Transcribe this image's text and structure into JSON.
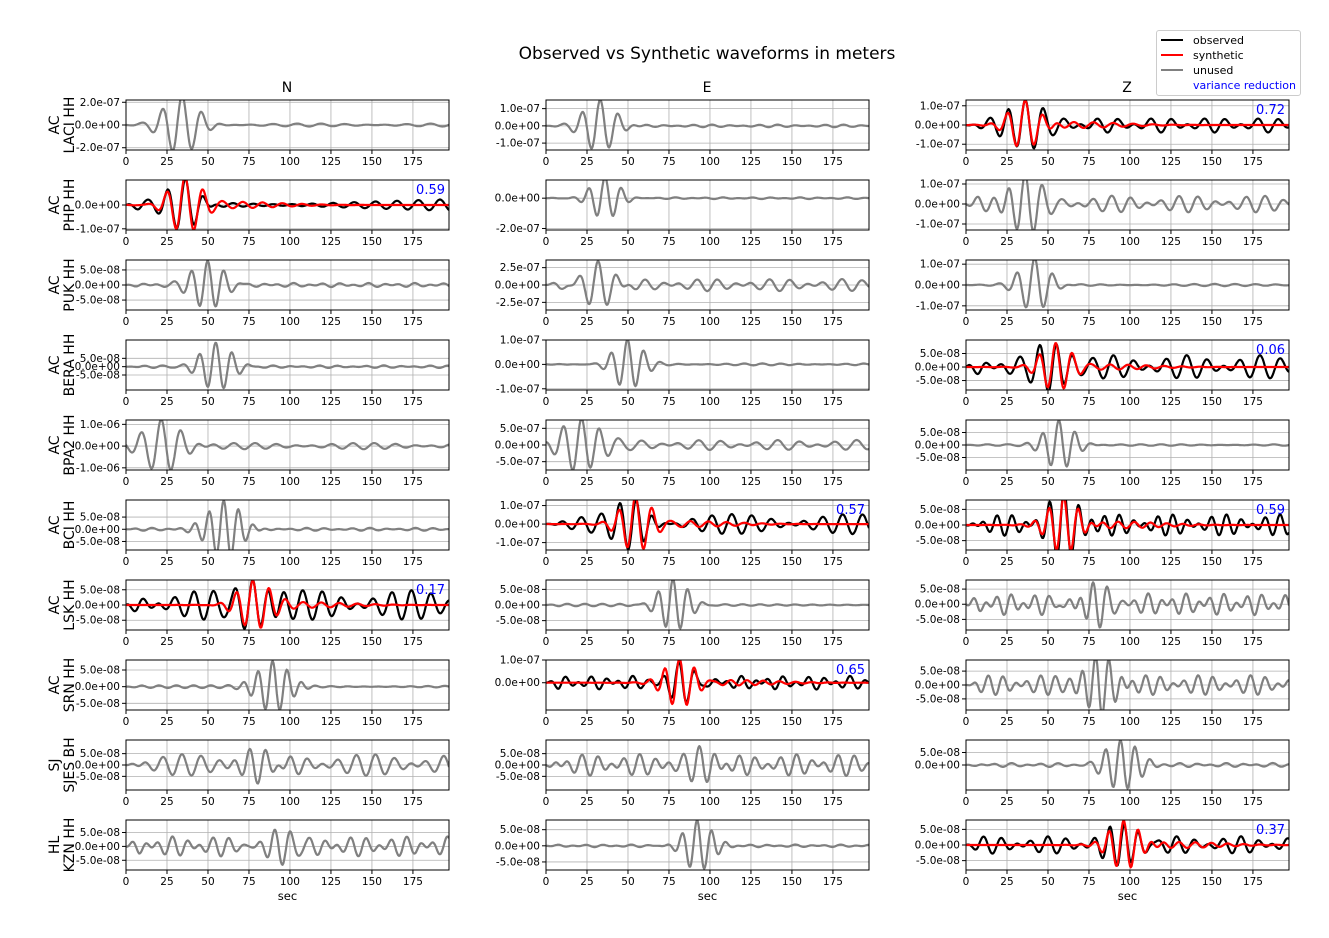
{
  "title": "Observed vs Synthetic waveforms in meters",
  "column_titles": [
    "N",
    "E",
    "Z"
  ],
  "legend": {
    "observed": "observed",
    "synthetic": "synthetic",
    "unused": "unused",
    "variance_reduction": "variance reduction"
  },
  "colors": {
    "observed": "#000000",
    "synthetic": "#ff0000",
    "unused": "#808080",
    "variance_reduction": "#0000ff"
  },
  "chart_data": {
    "type": "line",
    "title": "Observed vs Synthetic waveforms in meters",
    "xlabel": "sec",
    "xlim": [
      0,
      197
    ],
    "xticks": [
      0,
      25,
      50,
      75,
      100,
      125,
      150,
      175
    ],
    "grid": true,
    "legend_position": "top-right",
    "stations": [
      {
        "network": "AC",
        "code": "LACI HH",
        "N": {
          "status": "unused",
          "ylim": [
            -2.2e-07,
            2.2e-07
          ],
          "yticks": [
            2e-07,
            0,
            -2e-07
          ],
          "yticklabels": [
            "2.0e-07",
            "0.0e+00",
            "-2.0e-07"
          ],
          "t0": 34,
          "amp": 2.6e-07,
          "period": 12,
          "dur": 14,
          "noise": 0.05
        },
        "E": {
          "status": "unused",
          "ylim": [
            -1.4e-07,
            1.5e-07
          ],
          "yticks": [
            1e-07,
            0,
            -1e-07
          ],
          "yticklabels": [
            "1.0e-07",
            "0.0e+00",
            "-1.0e-07"
          ],
          "t0": 33,
          "amp": 1.5e-07,
          "period": 11,
          "dur": 13,
          "noise": 0.05
        },
        "Z": {
          "status": "used",
          "ylim": [
            -1.3e-07,
            1.3e-07
          ],
          "yticks": [
            1e-07,
            0,
            -1e-07
          ],
          "yticklabels": [
            "1.0e-07",
            "0.0e+00",
            "-1.0e-07"
          ],
          "t0": 36,
          "amp": 1.3e-07,
          "period": 11,
          "dur": 12,
          "noise": 0.3,
          "variance_reduction": "0.72"
        }
      },
      {
        "network": "AC",
        "code": "PHP HH",
        "N": {
          "status": "used",
          "ylim": [
            -1.05e-07,
            1.05e-07
          ],
          "yticks": [
            0,
            -1e-07
          ],
          "yticklabels": [
            "0.0e+00",
            "-1.0e-07"
          ],
          "t0": 36,
          "amp": 1.1e-07,
          "period": 11,
          "dur": 12,
          "noise": 0.3,
          "variance_reduction": "0.59"
        },
        "E": {
          "status": "unused",
          "ylim": [
            -2.1e-07,
            1.2e-07
          ],
          "yticks": [
            0,
            -2e-07
          ],
          "yticklabels": [
            "0.0e+00",
            "-2.0e-07"
          ],
          "t0": 36,
          "amp": 1.4e-07,
          "period": 10,
          "dur": 12,
          "noise": 0.04
        },
        "Z": {
          "status": "unused",
          "ylim": [
            -1.3e-07,
            1.2e-07
          ],
          "yticks": [
            1e-07,
            0,
            -1e-07
          ],
          "yticklabels": [
            "1.0e-07",
            "0.0e+00",
            "-1.0e-07"
          ],
          "t0": 36,
          "amp": 1.2e-07,
          "period": 10,
          "dur": 14,
          "noise": 0.35
        }
      },
      {
        "network": "AC",
        "code": "PUK HH",
        "N": {
          "status": "unused",
          "ylim": [
            -8.3e-08,
            8.3e-08
          ],
          "yticks": [
            5e-08,
            0,
            -5e-08
          ],
          "yticklabels": [
            "5.0e-08",
            "0.0e+00",
            "-5.0e-08"
          ],
          "t0": 50,
          "amp": 8.5e-08,
          "period": 10,
          "dur": 13,
          "noise": 0.08
        },
        "E": {
          "status": "unused",
          "ylim": [
            -3.6e-07,
            3.6e-07
          ],
          "yticks": [
            2.5e-07,
            0,
            -2.5e-07
          ],
          "yticklabels": [
            "2.5e-07",
            "0.0e+00",
            "-2.5e-07"
          ],
          "t0": 32,
          "amp": 3.5e-07,
          "period": 11,
          "dur": 14,
          "noise": 0.25
        },
        "Z": {
          "status": "unused",
          "ylim": [
            -1.2e-07,
            1.2e-07
          ],
          "yticks": [
            1e-07,
            0,
            -1e-07
          ],
          "yticklabels": [
            "1.0e-07",
            "0.0e+00",
            "-1.0e-07"
          ],
          "t0": 42,
          "amp": 1.3e-07,
          "period": 11,
          "dur": 12,
          "noise": 0.04
        }
      },
      {
        "network": "AC",
        "code": "BERA HH",
        "N": {
          "status": "unused",
          "ylim": [
            -1.4e-07,
            1.6e-07
          ],
          "yticks": [
            5e-08,
            0,
            -5e-08
          ],
          "yticklabels": [
            "5.0e-08",
            "0.0e+00",
            "-5.0e-08"
          ],
          "t0": 55,
          "amp": 1.5e-07,
          "period": 10,
          "dur": 13,
          "noise": 0.05
        },
        "E": {
          "status": "unused",
          "ylim": [
            -1.05e-07,
            1e-07
          ],
          "yticks": [
            1e-07,
            0,
            -1e-07
          ],
          "yticklabels": [
            "1.0e-07",
            "0.0e+00",
            "-1.0e-07"
          ],
          "t0": 50,
          "amp": 1e-07,
          "period": 10,
          "dur": 12,
          "noise": 0.04
        },
        "Z": {
          "status": "used",
          "ylim": [
            -8.5e-08,
            1e-07
          ],
          "yticks": [
            5e-08,
            0,
            -5e-08
          ],
          "yticklabels": [
            "5.0e-08",
            "0.0e+00",
            "-5.0e-08"
          ],
          "t0": 55,
          "amp": 8e-08,
          "period": 10,
          "dur": 12,
          "noise": 0.55,
          "variance_reduction": "0.06"
        }
      },
      {
        "network": "AC",
        "code": "BPA2 HH",
        "N": {
          "status": "unused",
          "ylim": [
            -1.1e-06,
            1.2e-06
          ],
          "yticks": [
            1e-06,
            0,
            -1e-06
          ],
          "yticklabels": [
            "1.0e-06",
            "0.0e+00",
            "-1.0e-06"
          ],
          "t0": 22,
          "amp": 1.2e-06,
          "period": 12,
          "dur": 16,
          "noise": 0.12
        },
        "E": {
          "status": "unused",
          "ylim": [
            -7.5e-07,
            7.5e-07
          ],
          "yticks": [
            5e-07,
            0,
            -5e-07
          ],
          "yticklabels": [
            "5.0e-07",
            "0.0e+00",
            "-5.0e-07"
          ],
          "t0": 22,
          "amp": 7.5e-07,
          "period": 11,
          "dur": 15,
          "noise": 0.2
        },
        "Z": {
          "status": "unused",
          "ylim": [
            -1e-07,
            1e-07
          ],
          "yticks": [
            5e-08,
            0,
            -5e-08
          ],
          "yticklabels": [
            "5.0e-08",
            "0.0e+00",
            "-5.0e-08"
          ],
          "t0": 57,
          "amp": 1e-07,
          "period": 10,
          "dur": 12,
          "noise": 0.03
        }
      },
      {
        "network": "AC",
        "code": "BCI HH",
        "N": {
          "status": "unused",
          "ylim": [
            -8.5e-08,
            1.2e-07
          ],
          "yticks": [
            5e-08,
            0,
            -5e-08
          ],
          "yticklabels": [
            "5.0e-08",
            "0.0e+00",
            "-5.0e-08"
          ],
          "t0": 60,
          "amp": 1.2e-07,
          "period": 9,
          "dur": 14,
          "noise": 0.05
        },
        "E": {
          "status": "used",
          "ylim": [
            -1.4e-07,
            1.3e-07
          ],
          "yticks": [
            1e-07,
            0,
            -1e-07
          ],
          "yticklabels": [
            "1.0e-07",
            "0.0e+00",
            "-1.0e-07"
          ],
          "t0": 55,
          "amp": 1.35e-07,
          "period": 10,
          "dur": 12,
          "noise": 0.4,
          "variance_reduction": "0.57"
        },
        "Z": {
          "status": "used",
          "ylim": [
            -8e-08,
            8e-08
          ],
          "yticks": [
            5e-08,
            0,
            -5e-08
          ],
          "yticklabels": [
            "5.0e-08",
            "0.0e+00",
            "-5.0e-08"
          ],
          "t0": 60,
          "amp": 9e-08,
          "period": 9,
          "dur": 12,
          "noise": 0.38,
          "variance_reduction": "0.59"
        }
      },
      {
        "network": "AC",
        "code": "LSK HH",
        "N": {
          "status": "used",
          "ylim": [
            -8.2e-08,
            8.2e-08
          ],
          "yticks": [
            5e-08,
            0,
            -5e-08
          ],
          "yticklabels": [
            "5.0e-08",
            "0.0e+00",
            "-5.0e-08"
          ],
          "t0": 78,
          "amp": 7.5e-08,
          "period": 10,
          "dur": 13,
          "noise": 0.65,
          "variance_reduction": "0.17"
        },
        "E": {
          "status": "unused",
          "ylim": [
            -8e-08,
            8e-08
          ],
          "yticks": [
            5e-08,
            0,
            -5e-08
          ],
          "yticklabels": [
            "5.0e-08",
            "0.0e+00",
            "-5.0e-08"
          ],
          "t0": 78,
          "amp": 8e-08,
          "period": 9,
          "dur": 12,
          "noise": 0.05
        },
        "Z": {
          "status": "unused",
          "ylim": [
            -8.5e-08,
            8e-08
          ],
          "yticks": [
            5e-08,
            0,
            -5e-08
          ],
          "yticklabels": [
            "5.0e-08",
            "0.0e+00",
            "-5.0e-08"
          ],
          "t0": 78,
          "amp": 8e-08,
          "period": 8,
          "dur": 14,
          "noise": 0.45
        }
      },
      {
        "network": "AC",
        "code": "SRN HH",
        "N": {
          "status": "unused",
          "ylim": [
            -7e-08,
            8e-08
          ],
          "yticks": [
            5e-08,
            0,
            -5e-08
          ],
          "yticklabels": [
            "5.0e-08",
            "0.0e+00",
            "-5.0e-08"
          ],
          "t0": 90,
          "amp": 8e-08,
          "period": 9,
          "dur": 13,
          "noise": 0.05
        },
        "E": {
          "status": "used",
          "ylim": [
            -1.2e-07,
            1e-07
          ],
          "yticks": [
            1e-07,
            0
          ],
          "yticklabels": [
            "1.0e-07",
            "0.0e+00"
          ],
          "t0": 82,
          "amp": 1e-07,
          "period": 9,
          "dur": 12,
          "noise": 0.3,
          "variance_reduction": "0.65"
        },
        "Z": {
          "status": "unused",
          "ylim": [
            -9e-08,
            9e-08
          ],
          "yticks": [
            5e-08,
            0,
            -5e-08
          ],
          "yticklabels": [
            "5.0e-08",
            "0.0e+00",
            "-5.0e-08"
          ],
          "t0": 80,
          "amp": 9e-08,
          "period": 8,
          "dur": 13,
          "noise": 0.4
        }
      },
      {
        "network": "SJ",
        "code": "SJES BH",
        "N": {
          "status": "unused",
          "ylim": [
            -1.1e-07,
            1.1e-07
          ],
          "yticks": [
            5e-08,
            0,
            -5e-08
          ],
          "yticklabels": [
            "5.0e-08",
            "0.0e+00",
            "-5.0e-08"
          ],
          "t0": 85,
          "amp": 6e-08,
          "period": 9,
          "dur": 16,
          "noise": 0.8
        },
        "E": {
          "status": "unused",
          "ylim": [
            -1.1e-07,
            1.1e-07
          ],
          "yticks": [
            5e-08,
            0,
            -5e-08
          ],
          "yticklabels": [
            "5.0e-08",
            "0.0e+00",
            "-5.0e-08"
          ],
          "t0": 95,
          "amp": 6e-08,
          "period": 9,
          "dur": 16,
          "noise": 0.8
        },
        "Z": {
          "status": "unused",
          "ylim": [
            -1e-07,
            1e-07
          ],
          "yticks": [
            5e-08,
            0
          ],
          "yticklabels": [
            "5.0e-08",
            "0.0e+00"
          ],
          "t0": 95,
          "amp": 1e-07,
          "period": 9,
          "dur": 13,
          "noise": 0.08
        }
      },
      {
        "network": "HL",
        "code": "KZN HH",
        "N": {
          "status": "unused",
          "ylim": [
            -8.5e-08,
            9.5e-08
          ],
          "yticks": [
            5e-08,
            0,
            -5e-08
          ],
          "yticklabels": [
            "5.0e-08",
            "0.0e+00",
            "-5.0e-08"
          ],
          "t0": 92,
          "amp": 8e-08,
          "period": 9,
          "dur": 14,
          "noise": 0.45
        },
        "E": {
          "status": "unused",
          "ylim": [
            -7.5e-08,
            8e-08
          ],
          "yticks": [
            5e-08,
            0,
            -5e-08
          ],
          "yticklabels": [
            "5.0e-08",
            "0.0e+00",
            "-5.0e-08"
          ],
          "t0": 93,
          "amp": 8e-08,
          "period": 9,
          "dur": 12,
          "noise": 0.05
        },
        "Z": {
          "status": "used",
          "ylim": [
            -8e-08,
            8e-08
          ],
          "yticks": [
            5e-08,
            0,
            -5e-08
          ],
          "yticklabels": [
            "5.0e-08",
            "0.0e+00",
            "-5.0e-08"
          ],
          "t0": 97,
          "amp": 8e-08,
          "period": 9,
          "dur": 12,
          "noise": 0.35,
          "variance_reduction": "0.37"
        }
      }
    ]
  }
}
